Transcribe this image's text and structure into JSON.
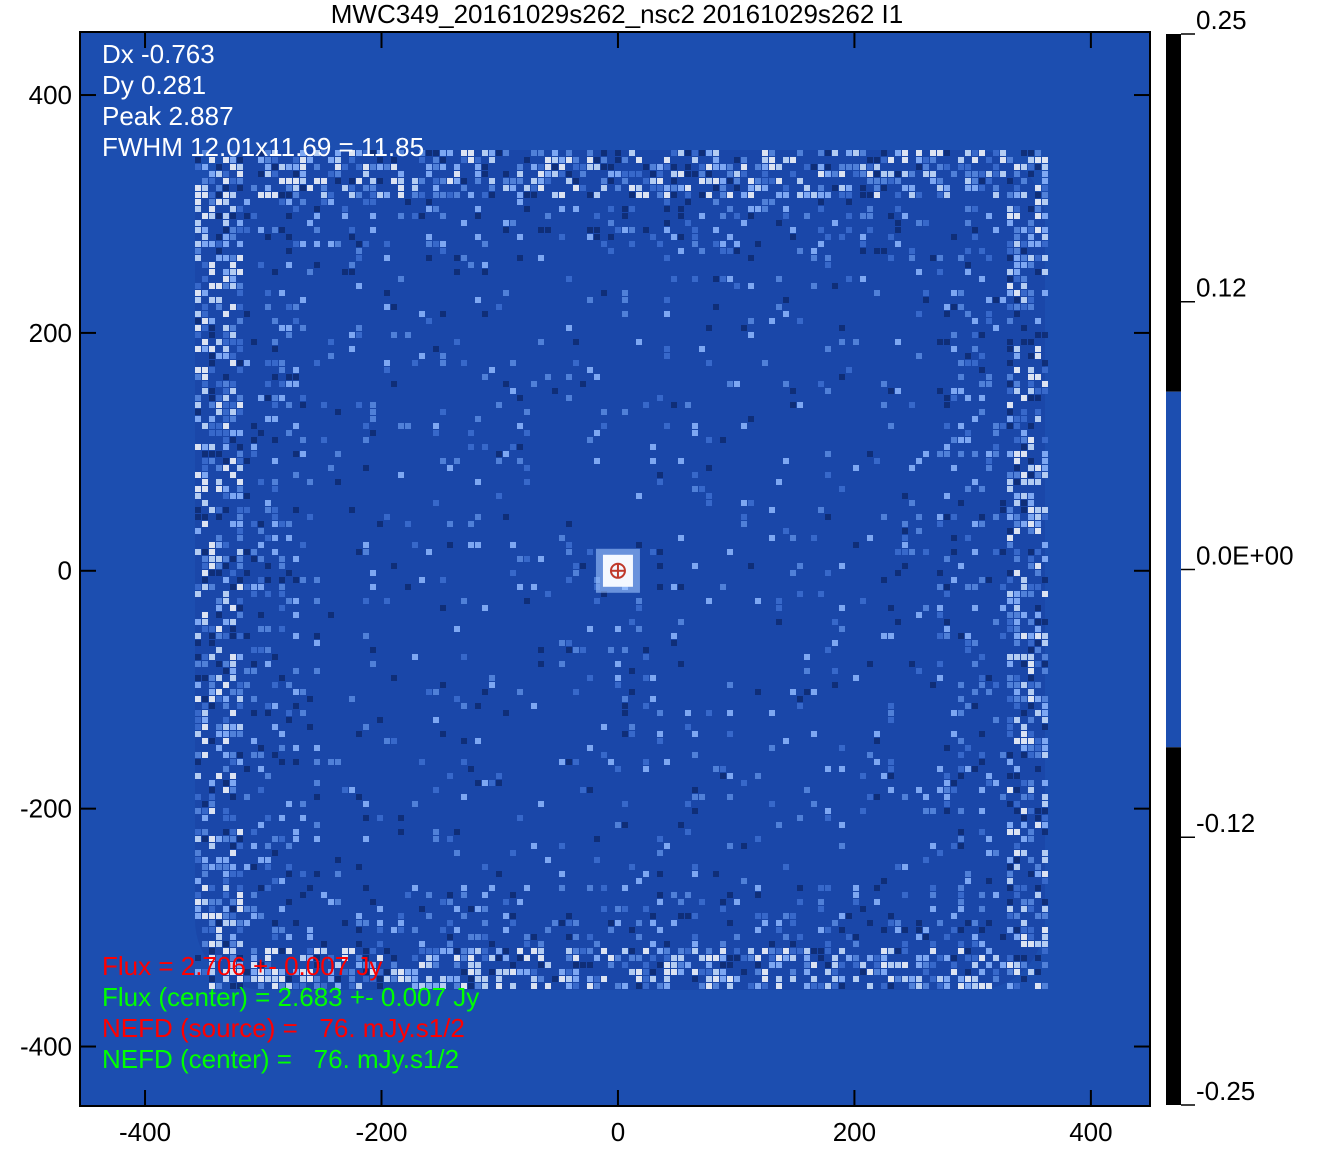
{
  "chart_data": {
    "type": "image",
    "title": "MWC349_20161029s262_nsc2 20161029s262 I1",
    "xlim": [
      -455,
      450
    ],
    "ylim": [
      -450,
      453
    ],
    "xticks": [
      -400,
      -200,
      0,
      200,
      400
    ],
    "yticks": [
      -400,
      -200,
      0,
      200,
      400
    ],
    "background_color": "#1c4eb0",
    "source_position": {
      "x": 0,
      "y": 0
    },
    "annotations_top": [
      {
        "text": "Dx -0.763",
        "color": "#ffffff"
      },
      {
        "text": "Dy 0.281",
        "color": "#ffffff"
      },
      {
        "text": "Peak 2.887",
        "color": "#ffffff"
      },
      {
        "text": "FWHM 12.01x11.69 = 11.85",
        "color": "#ffffff"
      }
    ],
    "annotations_bottom": [
      {
        "text": "Flux = 2.706 +- 0.007 Jy",
        "color": "#ff0000"
      },
      {
        "text": "Flux (center) = 2.683 +- 0.007 Jy",
        "color": "#00ff00"
      },
      {
        "text": "NEFD (source) =   76. mJy.s1/2",
        "color": "#ff0000"
      },
      {
        "text": "NEFD (center) =   76. mJy.s1/2",
        "color": "#00ff00"
      }
    ],
    "colorbar": {
      "lim": [
        -0.25,
        0.25
      ],
      "ticks": [
        0.25,
        {
          "value": 0.125,
          "label": "0.12"
        },
        {
          "value": 0,
          "label": "0.0E+00"
        },
        {
          "value": -0.125,
          "label": "-0.12"
        },
        -0.25
      ],
      "bands": [
        {
          "range": [
            0.083,
            0.25
          ],
          "color": "#000000"
        },
        {
          "range": [
            -0.083,
            0.083
          ],
          "color": "#1c4eb0"
        },
        {
          "range": [
            -0.25,
            -0.083
          ],
          "color": "#000000"
        }
      ]
    }
  }
}
